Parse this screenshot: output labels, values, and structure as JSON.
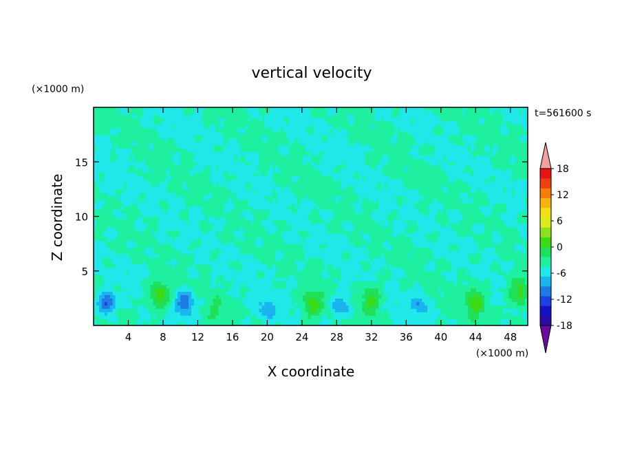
{
  "chart_data": {
    "type": "heatmap",
    "title": "vertical velocity",
    "xlabel": "X coordinate",
    "ylabel": "Z coordinate",
    "x_unit": "(×1000 m)",
    "y_unit": "(×1000 m)",
    "time_label": "t=561600 s",
    "xlim": [
      0,
      50
    ],
    "ylim": [
      0,
      20
    ],
    "x_ticks": [
      "4",
      "8",
      "12",
      "16",
      "20",
      "24",
      "28",
      "32",
      "36",
      "40",
      "44",
      "48"
    ],
    "y_ticks": [
      "5",
      "10",
      "15"
    ],
    "colorbar": {
      "labels": [
        "18",
        "12",
        "6",
        "0",
        "-6",
        "-12",
        "-18"
      ],
      "min": -21,
      "max": 21,
      "step": 3,
      "colors": [
        "#6a0aa0",
        "#2a0ca8",
        "#1212c8",
        "#1a40e6",
        "#1e7ae6",
        "#1ab4ee",
        "#20e8e8",
        "#1ef0a0",
        "#20e05a",
        "#3cdc14",
        "#8ce01e",
        "#d8ec1e",
        "#f0e014",
        "#f8b40e",
        "#f87c0a",
        "#f04010",
        "#e81414",
        "#f4a0a0"
      ]
    },
    "updrafts": [
      {
        "x": 7.5,
        "z": 2.8,
        "w": 8
      },
      {
        "x": 25.2,
        "z": 1.9,
        "w": 7
      },
      {
        "x": 32.0,
        "z": 2.4,
        "w": 7
      },
      {
        "x": 44.0,
        "z": 2.2,
        "w": 7
      },
      {
        "x": 49.0,
        "z": 3.0,
        "w": 8
      },
      {
        "x": 14.0,
        "z": 1.3,
        "w": 3
      }
    ],
    "downdrafts": [
      {
        "x": 1.5,
        "z": 2.0,
        "w": -10
      },
      {
        "x": 10.5,
        "z": 2.1,
        "w": -9
      },
      {
        "x": 28.5,
        "z": 1.8,
        "w": -7
      },
      {
        "x": 20.0,
        "z": 1.5,
        "w": -5
      },
      {
        "x": 37.5,
        "z": 2.0,
        "w": -5
      }
    ]
  }
}
